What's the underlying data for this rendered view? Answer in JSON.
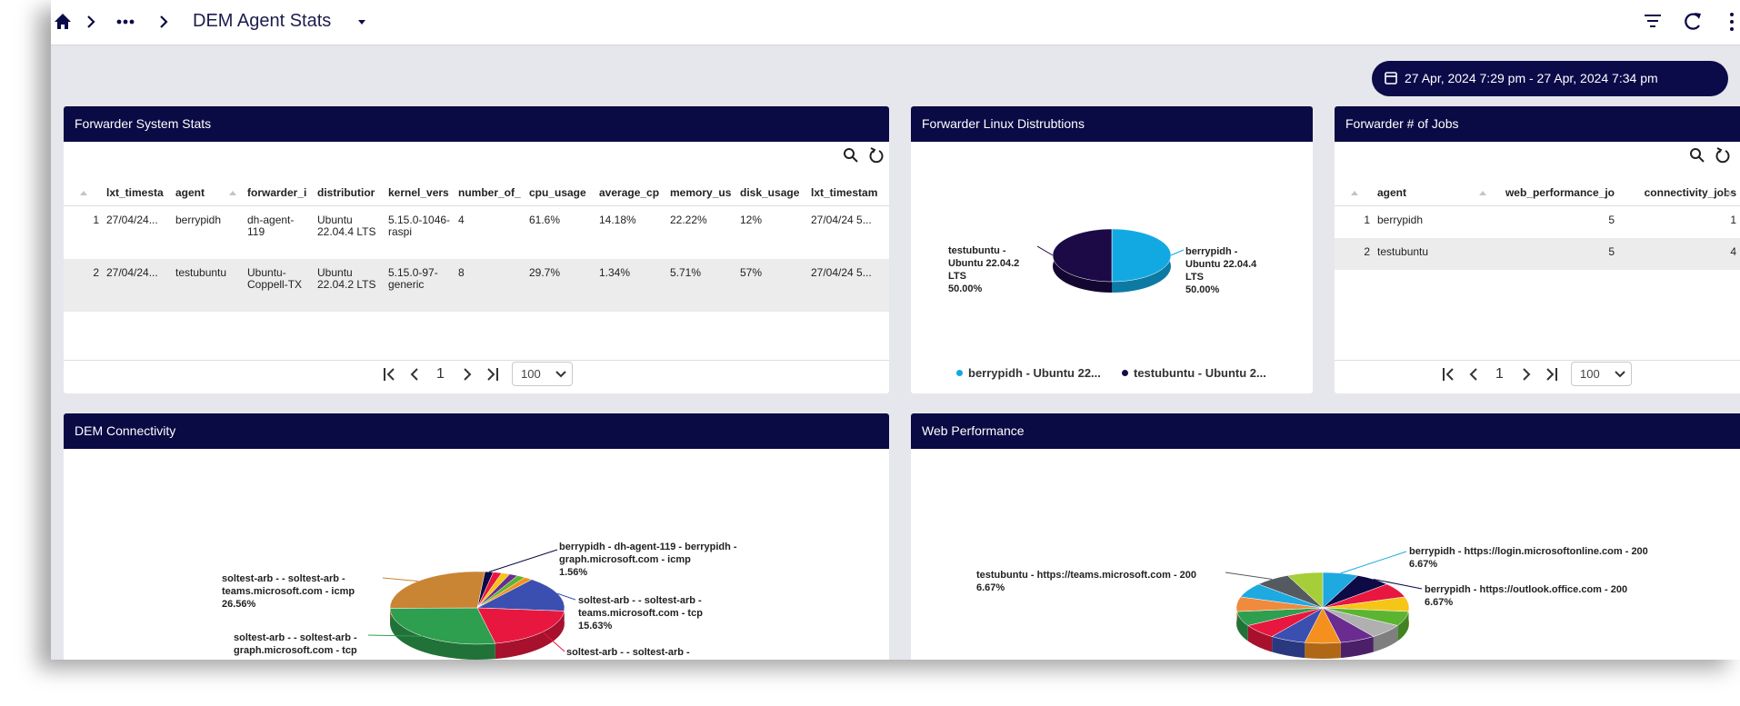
{
  "header": {
    "title": "DEM Agent Stats"
  },
  "date_range": "27 Apr, 2024 7:29 pm - 27 Apr, 2024 7:34 pm",
  "panels": [
    {
      "title": "Forwarder System Stats",
      "table": {
        "columns": [
          "lxt_timesta",
          "agent",
          "forwarder_i",
          "distributior",
          "kernel_vers",
          "number_of_",
          "cpu_usage",
          "average_cp",
          "memory_us",
          "disk_usage",
          "lxt_timestam"
        ],
        "rows": [
          {
            "index": "1",
            "cells": [
              "27/04/24...",
              "berrypidh",
              "dh-agent-119",
              "Ubuntu 22.04.4 LTS",
              "5.15.0-1046-raspi",
              "4",
              "61.6%",
              "14.18%",
              "22.22%",
              "12%",
              "27/04/24 5..."
            ]
          },
          {
            "index": "2",
            "cells": [
              "27/04/24...",
              "testubuntu",
              "Ubuntu-Coppell-TX",
              "Ubuntu 22.04.2 LTS",
              "5.15.0-97-generic",
              "8",
              "29.7%",
              "1.34%",
              "5.71%",
              "57%",
              "27/04/24 5..."
            ]
          }
        ]
      },
      "pager": {
        "page": "1",
        "page_size": "100"
      }
    },
    {
      "title": "Forwarder Linux Distrubtions",
      "chart": {
        "type": "pie",
        "slices": [
          {
            "name": "berrypidh - Ubuntu 22.04.4 LTS",
            "color": "#12a9e3",
            "value": 50,
            "value_label": "50.00%"
          },
          {
            "name": "testubuntu - Ubuntu 22.04.2 LTS",
            "color": "#1b0a45",
            "value": 50,
            "value_label": "50.00%"
          }
        ],
        "legend": [
          "berrypidh - Ubuntu 22...",
          "testubuntu - Ubuntu 2..."
        ]
      }
    },
    {
      "title": "Forwarder # of Jobs",
      "table": {
        "columns": [
          "agent",
          "web_performance_jo",
          "connectivity_jobs"
        ],
        "rows": [
          {
            "index": "1",
            "cells": [
              "berrypidh",
              "5",
              "1"
            ]
          },
          {
            "index": "2",
            "cells": [
              "testubuntu",
              "5",
              "4"
            ]
          }
        ]
      },
      "pager": {
        "page": "1",
        "page_size": "100"
      }
    },
    {
      "title": "DEM Connectivity",
      "chart": {
        "type": "pie",
        "slices": [
          {
            "name": "berrypidh - dh-agent-119 - berrypidh - graph.microsoft.com - icmp",
            "color": "#0d0a45",
            "value": 1.56,
            "value_label": "1.56%"
          },
          {
            "name": null,
            "color": "#e8173f",
            "value": 1.56
          },
          {
            "name": null,
            "color": "#f5c518",
            "value": 1.56
          },
          {
            "name": null,
            "color": "#6a2c91",
            "value": 1.56
          },
          {
            "name": null,
            "color": "#5cb531",
            "value": 1.56
          },
          {
            "name": null,
            "color": "#f5901e",
            "value": 1.56
          },
          {
            "name": "soltest-arb - - soltest-arb - teams.microsoft.com - tcp",
            "color": "#3b4fb0",
            "value": 15.63,
            "value_label": "15.63%"
          },
          {
            "name": "soltest-arb - - soltest-arb -",
            "color": "#e8173f",
            "value": 20.31
          },
          {
            "name": "soltest-arb - - soltest-arb - graph.microsoft.com - tcp",
            "color": "#2e9e4f",
            "value": 28.13
          },
          {
            "name": "soltest-arb - - soltest-arb - teams.microsoft.com - icmp",
            "color": "#c98434",
            "value": 26.56,
            "value_label": "26.56%"
          }
        ]
      }
    },
    {
      "title": "Web Performance",
      "chart": {
        "type": "pie",
        "slices": [
          {
            "name": "berrypidh - https://login.microsoftonline.com - 200",
            "color": "#1fa9e1",
            "value": 6.67,
            "value_label": "6.67%"
          },
          {
            "name": "berrypidh - https://outlook.office.com - 200",
            "color": "#0d0a45",
            "value": 6.67,
            "value_label": "6.67%"
          },
          {
            "name": null,
            "color": "#e8173f",
            "value": 6.67
          },
          {
            "name": null,
            "color": "#f5c518",
            "value": 6.67
          },
          {
            "name": null,
            "color": "#5cb531",
            "value": 6.67
          },
          {
            "name": null,
            "color": "#b0b0b0",
            "value": 6.67
          },
          {
            "name": null,
            "color": "#6a2c91",
            "value": 6.67
          },
          {
            "name": null,
            "color": "#f5901e",
            "value": 6.67
          },
          {
            "name": null,
            "color": "#3b4fb0",
            "value": 6.67
          },
          {
            "name": null,
            "color": "#e8173f",
            "value": 6.67
          },
          {
            "name": null,
            "color": "#2e9e4f",
            "value": 6.67
          },
          {
            "name": null,
            "color": "#f08a3c",
            "value": 6.67
          },
          {
            "name": null,
            "color": "#1fa9e1",
            "value": 6.67
          },
          {
            "name": "testubuntu - https://teams.microsoft.com - 200",
            "color": "#555a60",
            "value": 6.67,
            "value_label": "6.67%"
          },
          {
            "name": null,
            "color": "#a6ce39",
            "value": 6.67
          }
        ]
      }
    }
  ]
}
